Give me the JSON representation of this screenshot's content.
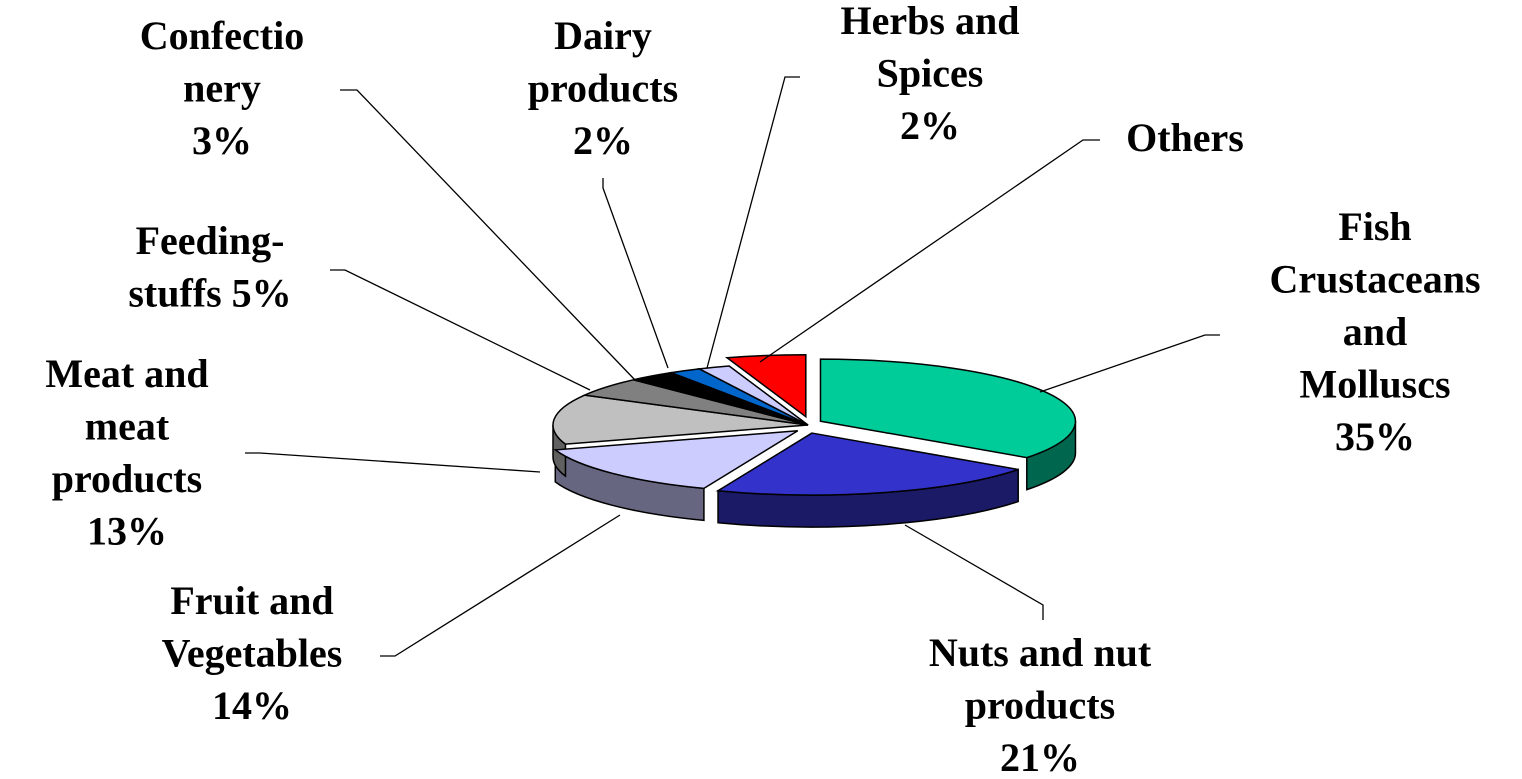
{
  "chart_data": {
    "type": "pie",
    "categories": [
      [
        "Fish",
        "Crustaceans",
        "and",
        "Molluscs"
      ],
      [
        "Nuts and nut",
        "products"
      ],
      [
        "Fruit and",
        "Vegetables"
      ],
      [
        "Meat and",
        "meat",
        "products"
      ],
      [
        "Feeding-",
        "stuffs"
      ],
      [
        "Confectio",
        "nery"
      ],
      [
        "Dairy",
        "products"
      ],
      [
        "Herbs and",
        "Spices"
      ],
      [
        "Others"
      ]
    ],
    "values": [
      35,
      21,
      14,
      13,
      5,
      3,
      2,
      2,
      5
    ],
    "value_labels": [
      "35%",
      "21%",
      "14%",
      "13%",
      "5%",
      "3%",
      "2%",
      "2%",
      null
    ],
    "colors": [
      "#00CC99",
      "#3333CC",
      "#CCCCFF",
      "#C0C0C0",
      "#808080",
      "#000000",
      "#0066CC",
      "#CCCCFF",
      "#FF0000"
    ],
    "exploded": [
      true,
      true,
      true,
      false,
      false,
      false,
      false,
      false,
      true
    ]
  }
}
